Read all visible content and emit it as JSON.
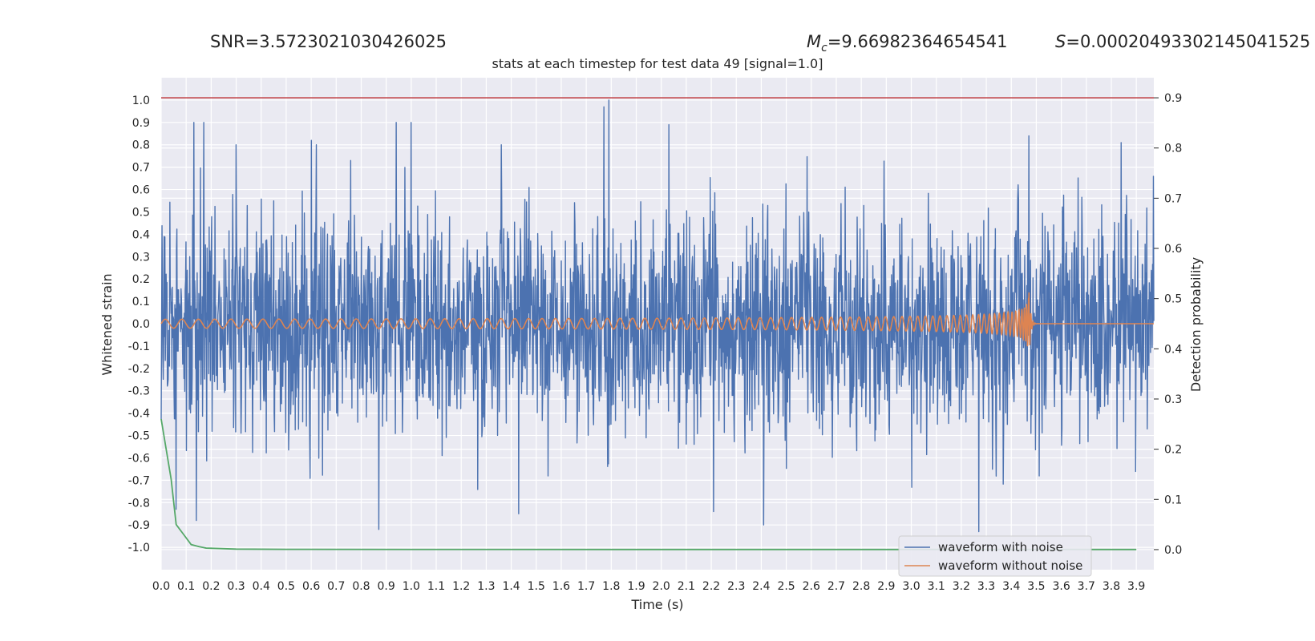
{
  "header": {
    "snr": "SNR=3.5723021030426025",
    "mc_symbol": "M",
    "mc_sub": "c",
    "mc_value": "=9.66982364654541",
    "s_symbol": "S",
    "s_value": "=0.00020493302145041525"
  },
  "chart_data": {
    "type": "line",
    "title": "stats at each timestep for test data 49 [signal=1.0]",
    "xlabel": "Time (s)",
    "ylabel": "Whitened strain",
    "y2label": "Detection probability",
    "xlim": [
      0,
      3.97
    ],
    "ylim": [
      -1.1,
      1.1
    ],
    "y2lim": [
      -0.04,
      0.94
    ],
    "x_ticks": [
      "0.0",
      "0.1",
      "0.2",
      "0.3",
      "0.4",
      "0.5",
      "0.6",
      "0.7",
      "0.8",
      "0.9",
      "1.0",
      "1.1",
      "1.2",
      "1.3",
      "1.4",
      "1.5",
      "1.6",
      "1.7",
      "1.8",
      "1.9",
      "2.0",
      "2.1",
      "2.2",
      "2.3",
      "2.4",
      "2.5",
      "2.6",
      "2.7",
      "2.8",
      "2.9",
      "3.0",
      "3.1",
      "3.2",
      "3.3",
      "3.4",
      "3.5",
      "3.6",
      "3.7",
      "3.8",
      "3.9"
    ],
    "y_ticks": [
      "1.0",
      "0.9",
      "0.8",
      "0.7",
      "0.6",
      "0.5",
      "0.4",
      "0.3",
      "0.2",
      "0.1",
      "0.0",
      "-0.1",
      "-0.2",
      "-0.3",
      "-0.4",
      "-0.5",
      "-0.6",
      "-0.7",
      "-0.8",
      "-0.9",
      "-1.0"
    ],
    "y2_ticks": [
      "0.9",
      "0.8",
      "0.7",
      "0.6",
      "0.5",
      "0.4",
      "0.3",
      "0.2",
      "0.1",
      "0.0"
    ],
    "threshold": 0.9,
    "grid": true,
    "legend_placement": "lower-right",
    "series": [
      {
        "name": "waveform with noise",
        "color": "#4c72b0",
        "kind": "noisy-strain",
        "amplitude_typical": 0.4,
        "peak_max": [
          [
            0.13,
            0.9
          ],
          [
            0.17,
            0.9
          ],
          [
            0.3,
            0.8
          ],
          [
            0.6,
            0.82
          ],
          [
            0.62,
            0.8
          ],
          [
            0.94,
            0.9
          ],
          [
            1.0,
            0.9
          ],
          [
            1.36,
            0.8
          ],
          [
            1.77,
            0.97
          ],
          [
            1.79,
            1.0
          ],
          [
            2.03,
            0.89
          ],
          [
            3.47,
            0.84
          ],
          [
            3.84,
            0.81
          ]
        ],
        "peak_min": [
          [
            0.06,
            -0.83
          ],
          [
            0.14,
            -0.88
          ],
          [
            0.87,
            -0.92
          ],
          [
            1.43,
            -0.85
          ],
          [
            2.21,
            -0.84
          ],
          [
            2.41,
            -0.9
          ],
          [
            3.27,
            -0.93
          ]
        ]
      },
      {
        "name": "waveform without noise",
        "color": "#dd8452",
        "kind": "chirp",
        "merger_time": 3.47,
        "amplitude_start": 0.02,
        "amplitude_peak": 0.19,
        "frequency_start_hz": 15,
        "frequency_end_hz": 120
      },
      {
        "name": "",
        "color": "#55a868",
        "axis": "right",
        "x": [
          0.0,
          0.02,
          0.04,
          0.06,
          0.09,
          0.12,
          0.15,
          0.18,
          0.24,
          0.3,
          0.5,
          1.0,
          2.0,
          3.0,
          3.9
        ],
        "values": [
          0.26,
          0.2,
          0.14,
          0.05,
          0.03,
          0.01,
          0.006,
          0.003,
          0.002,
          0.001,
          0.0005,
          0.0003,
          0.0002,
          0.0002,
          0.0002
        ]
      }
    ],
    "threshold_color": "#c44e52"
  }
}
